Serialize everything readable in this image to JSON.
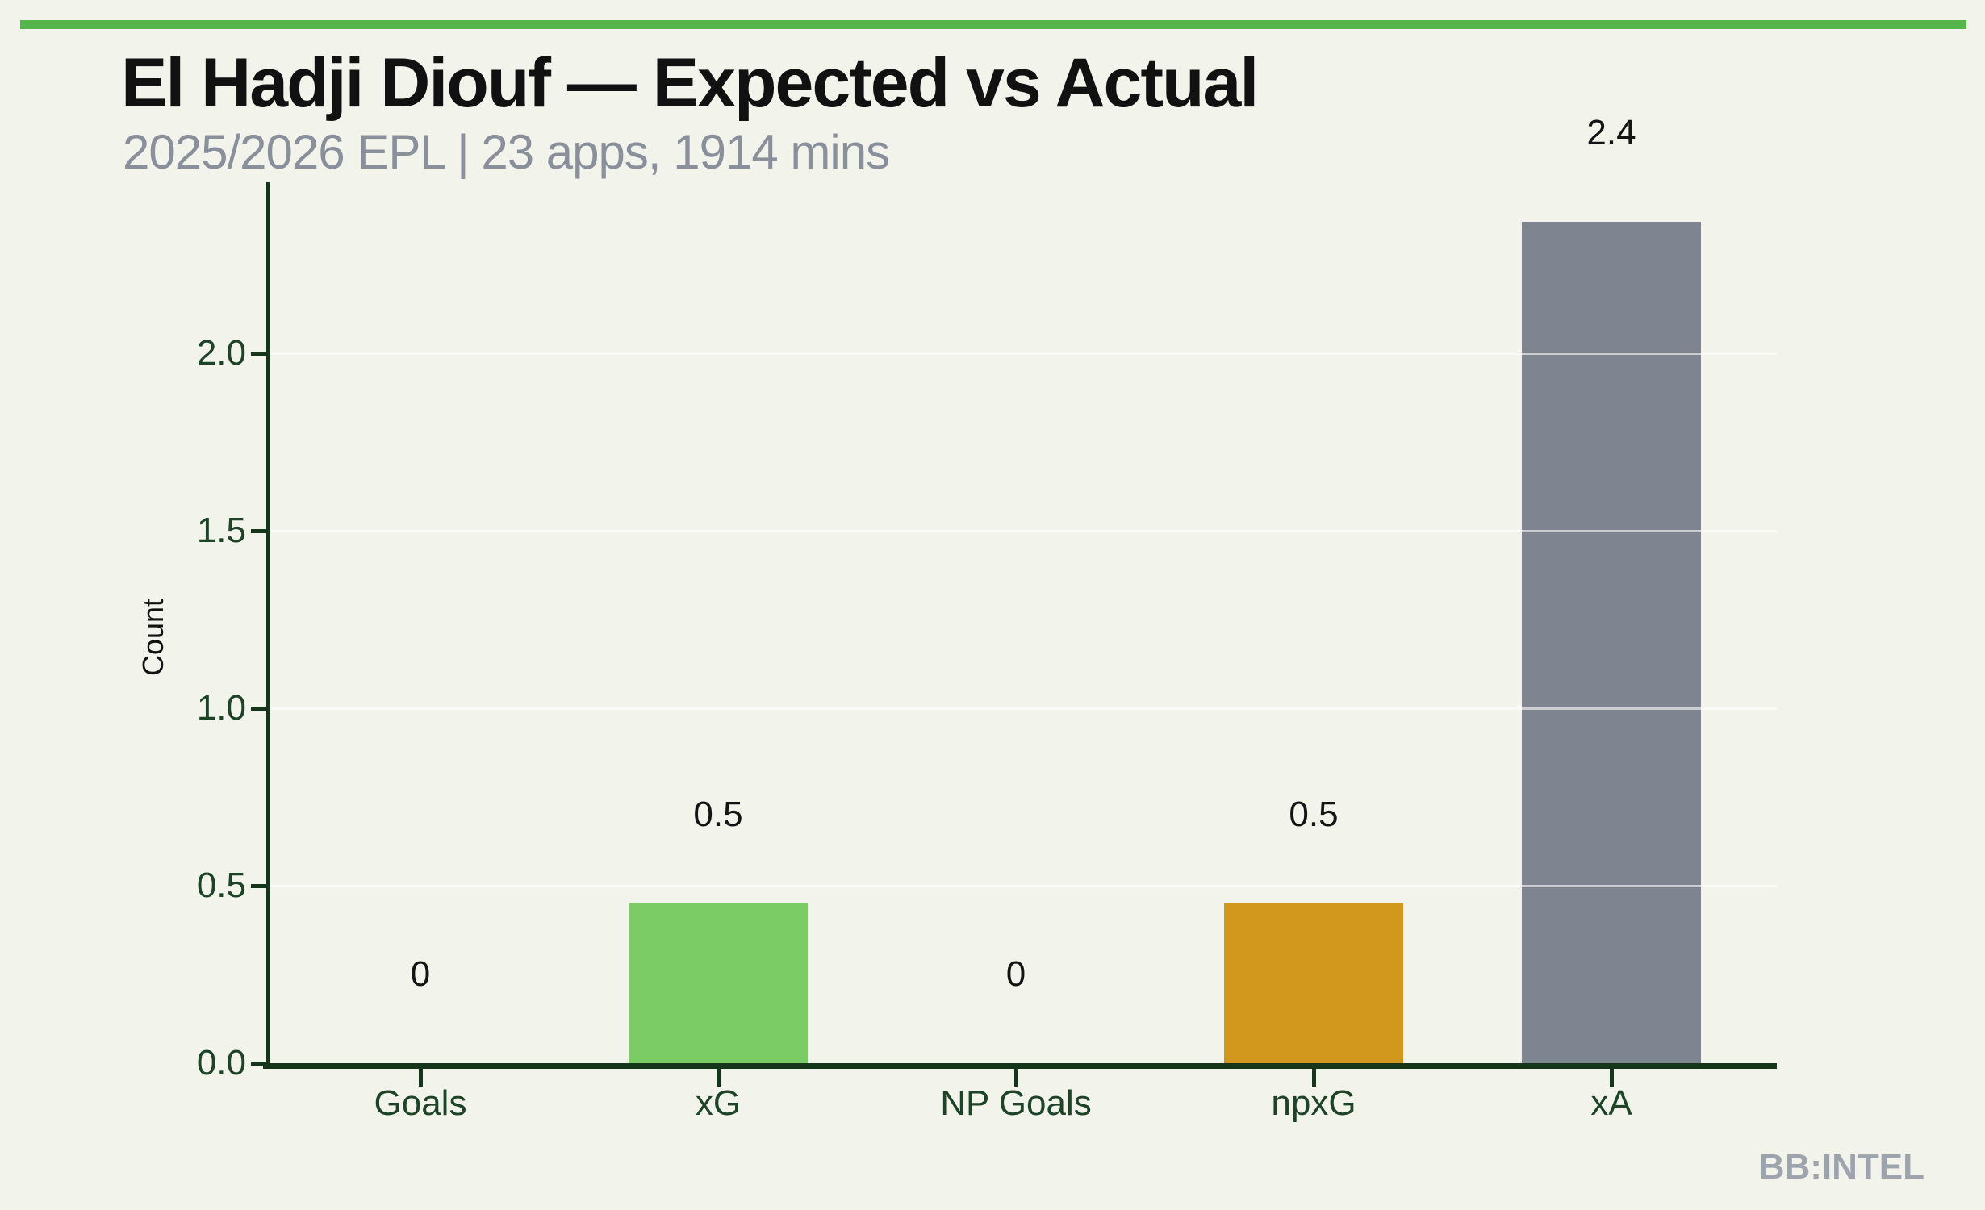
{
  "page": {
    "background_color": "#F2F3EB",
    "accent_stripe_color": "#55B74B"
  },
  "header": {
    "title": "El Hadji Diouf — Expected vs Actual",
    "subtitle": "2025/2026 EPL | 23 apps, 1914 mins",
    "title_color": "#111111",
    "subtitle_color": "#8A909B"
  },
  "footer": {
    "brand": "BB:INTEL",
    "brand_color": "#9EA4AE"
  },
  "chart_data": {
    "type": "bar",
    "title": "El Hadji Diouf — Expected vs Actual",
    "subtitle": "2025/2026 EPL | 23 apps, 1914 mins",
    "xlabel": "",
    "ylabel": "Count",
    "categories": [
      "Goals",
      "xG",
      "NP Goals",
      "npxG",
      "xA"
    ],
    "values": [
      0,
      0.45,
      0,
      0.45,
      2.37
    ],
    "value_labels": [
      "0",
      "0.5",
      "0",
      "0.5",
      "2.4"
    ],
    "bar_colors": [
      "#7BCC64",
      "#7BCC64",
      "#D2981E",
      "#D2981E",
      "#7E8490"
    ],
    "ytick_labels": [
      "0.0",
      "0.5",
      "1.0",
      "1.5",
      "2.0"
    ],
    "ytick_values": [
      0,
      0.5,
      1,
      1.5,
      2
    ],
    "ylim": [
      0,
      2.48
    ],
    "grid": "horizontal-over-bars",
    "legend": "none",
    "axis_color": "#16361C",
    "tick_label_color": "#1D4426",
    "value_label_color": "#141414",
    "gridline_color": "rgba(255,255,255,0.6)"
  }
}
